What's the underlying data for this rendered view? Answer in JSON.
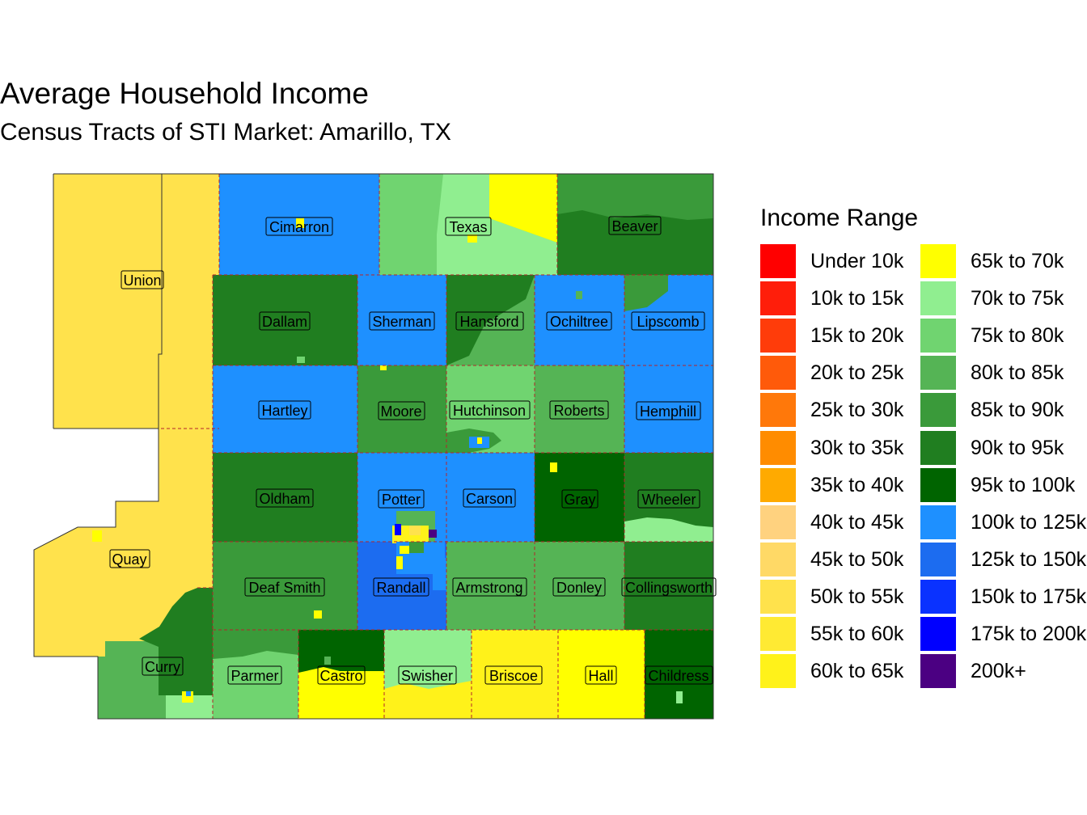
{
  "title": "Average Household Income",
  "subtitle": "Census Tracts of STI Market: Amarillo, TX",
  "legend": {
    "title": "Income Range",
    "items": [
      {
        "label": "Under 10k",
        "color": "#FF0000"
      },
      {
        "label": "10k to 15k",
        "color": "#FF1E0A"
      },
      {
        "label": "15k to 20k",
        "color": "#FF3C0A"
      },
      {
        "label": "20k to 25k",
        "color": "#FF5A0A"
      },
      {
        "label": "25k to 30k",
        "color": "#FF780A"
      },
      {
        "label": "30k to 35k",
        "color": "#FF8C00"
      },
      {
        "label": "35k to 40k",
        "color": "#FFAA00"
      },
      {
        "label": "40k to 45k",
        "color": "#FFD27F"
      },
      {
        "label": "45k to 50k",
        "color": "#FFD966"
      },
      {
        "label": "50k to 55k",
        "color": "#FFE24C"
      },
      {
        "label": "55k to 60k",
        "color": "#FFEA33"
      },
      {
        "label": "60k to 65k",
        "color": "#FFF21A"
      },
      {
        "label": "65k to 70k",
        "color": "#FFFF00"
      },
      {
        "label": "70k to 75k",
        "color": "#90EE90"
      },
      {
        "label": "75k to 80k",
        "color": "#70D470"
      },
      {
        "label": "80k to 85k",
        "color": "#55B455"
      },
      {
        "label": "85k to 90k",
        "color": "#3A9A3A"
      },
      {
        "label": "90k to 95k",
        "color": "#207E20"
      },
      {
        "label": "95k to 100k",
        "color": "#006400"
      },
      {
        "label": "100k to 125k",
        "color": "#1E90FF"
      },
      {
        "label": "125k to 150k",
        "color": "#1C6CF0"
      },
      {
        "label": "150k to 175k",
        "color": "#0A32FF"
      },
      {
        "label": "175k to 200k",
        "color": "#0000FF"
      },
      {
        "label": "200k+",
        "color": "#4B0082"
      }
    ]
  },
  "counties": [
    {
      "name": "Union",
      "range": "50k to 55k"
    },
    {
      "name": "Quay",
      "range": "50k to 55k"
    },
    {
      "name": "Curry",
      "range": "90k to 95k"
    },
    {
      "name": "Cimarron",
      "range": "100k to 125k"
    },
    {
      "name": "Texas",
      "range": "70k to 75k"
    },
    {
      "name": "Beaver",
      "range": "90k to 95k"
    },
    {
      "name": "Dallam",
      "range": "90k to 95k"
    },
    {
      "name": "Sherman",
      "range": "100k to 125k"
    },
    {
      "name": "Hansford",
      "range": "90k to 95k"
    },
    {
      "name": "Ochiltree",
      "range": "100k to 125k"
    },
    {
      "name": "Lipscomb",
      "range": "100k to 125k"
    },
    {
      "name": "Hartley",
      "range": "100k to 125k"
    },
    {
      "name": "Moore",
      "range": "85k to 90k"
    },
    {
      "name": "Hutchinson",
      "range": "75k to 80k"
    },
    {
      "name": "Roberts",
      "range": "80k to 85k"
    },
    {
      "name": "Hemphill",
      "range": "100k to 125k"
    },
    {
      "name": "Oldham",
      "range": "90k to 95k"
    },
    {
      "name": "Potter",
      "range": "100k to 125k"
    },
    {
      "name": "Carson",
      "range": "100k to 125k"
    },
    {
      "name": "Gray",
      "range": "95k to 100k"
    },
    {
      "name": "Wheeler",
      "range": "90k to 95k"
    },
    {
      "name": "Deaf Smith",
      "range": "85k to 90k"
    },
    {
      "name": "Randall",
      "range": "125k to 150k"
    },
    {
      "name": "Armstrong",
      "range": "80k to 85k"
    },
    {
      "name": "Donley",
      "range": "80k to 85k"
    },
    {
      "name": "Collingsworth",
      "range": "90k to 95k"
    },
    {
      "name": "Parmer",
      "range": "75k to 80k"
    },
    {
      "name": "Castro",
      "range": "65k to 70k"
    },
    {
      "name": "Swisher",
      "range": "60k to 65k"
    },
    {
      "name": "Briscoe",
      "range": "60k to 65k"
    },
    {
      "name": "Hall",
      "range": "65k to 70k"
    },
    {
      "name": "Childress",
      "range": "95k to 100k"
    }
  ]
}
